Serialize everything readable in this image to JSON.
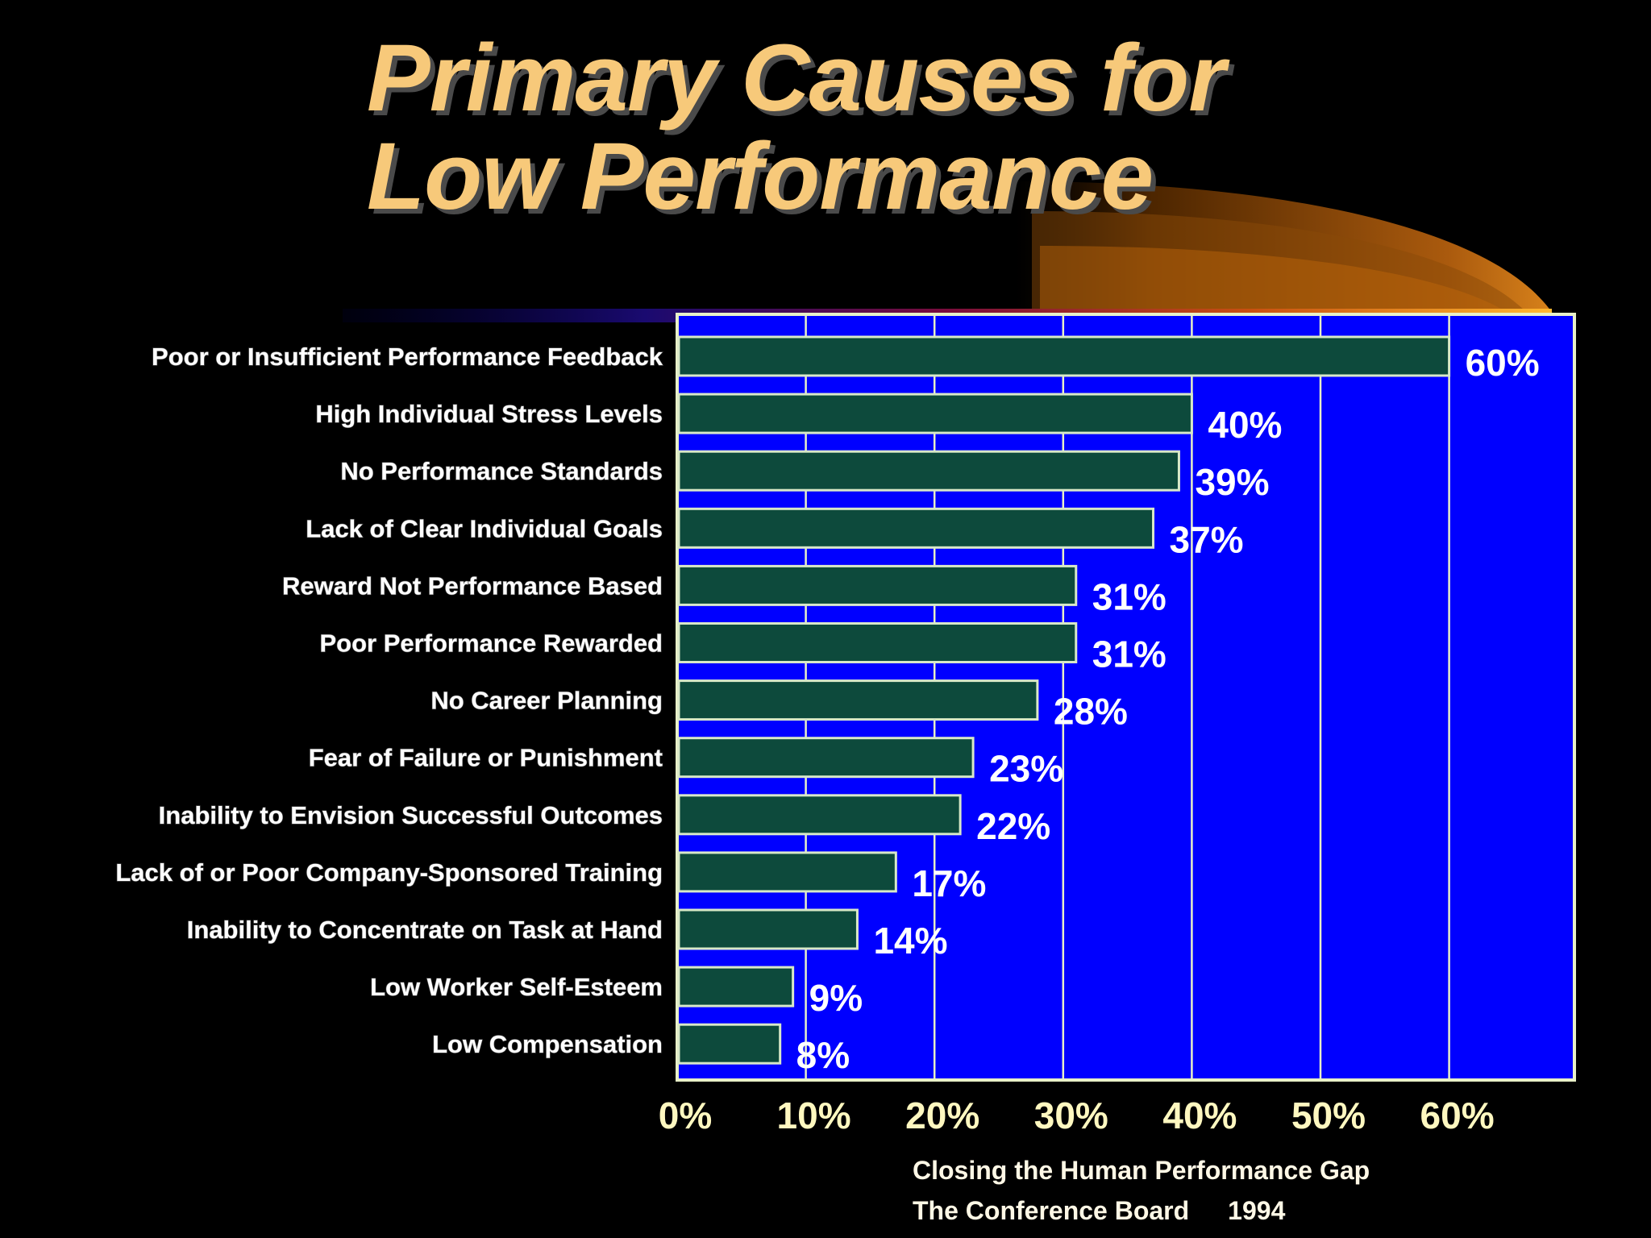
{
  "slide": {
    "title_line1": "Primary Causes for",
    "title_line2": "Low Performance",
    "source_line1": "Closing the Human Performance Gap",
    "source_org": "The Conference Board",
    "source_year": "1994"
  },
  "colors": {
    "background": "#000000",
    "title": "#f7c97a",
    "plot_area": "#0000ff",
    "bar_fill": "#0d4a3c",
    "bar_border": "#d8e8c8",
    "grid": "#e8f0c8",
    "value_label": "#ffffff",
    "tick_label": "#fff8c0",
    "category_label": "#ffffff"
  },
  "chart_data": {
    "type": "bar",
    "orientation": "horizontal",
    "categories": [
      "Poor or Insufficient Performance Feedback",
      "High Individual Stress Levels",
      "No Performance Standards",
      "Lack of Clear Individual Goals",
      "Reward Not Performance Based",
      "Poor Performance Rewarded",
      "No Career Planning",
      "Fear of Failure or Punishment",
      "Inability to Envision Successful Outcomes",
      "Lack of or Poor Company-Sponsored Training",
      "Inability to Concentrate on Task at Hand",
      "Low Worker Self-Esteem",
      "Low Compensation"
    ],
    "values": [
      60,
      40,
      39,
      37,
      31,
      31,
      28,
      23,
      22,
      17,
      14,
      9,
      8
    ],
    "value_labels": [
      "60%",
      "40%",
      "39%",
      "37%",
      "31%",
      "31%",
      "28%",
      "23%",
      "22%",
      "17%",
      "14%",
      "9%",
      "8%"
    ],
    "xlim": [
      0,
      70
    ],
    "xticks": [
      0,
      10,
      20,
      30,
      40,
      50,
      60
    ],
    "xtick_labels": [
      "0%",
      "10%",
      "20%",
      "30%",
      "40%",
      "50%",
      "60%"
    ],
    "xlabel": "",
    "ylabel": "",
    "grid": true,
    "legend": "none"
  }
}
